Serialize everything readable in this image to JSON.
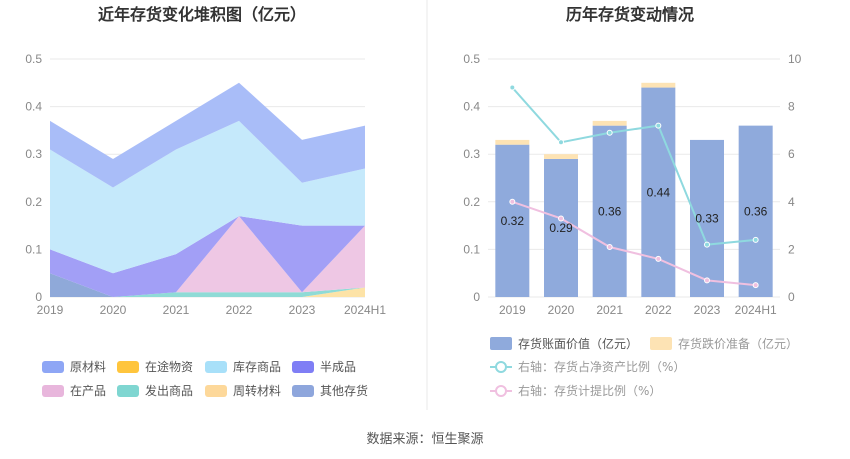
{
  "footer": {
    "source": "数据来源：恒生聚源"
  },
  "chart_data": [
    {
      "type": "area",
      "title": "近年存货变化堆积图（亿元）",
      "categories": [
        "2019",
        "2020",
        "2021",
        "2022",
        "2023",
        "2024H1"
      ],
      "y_ticks": [
        "0",
        "0.1",
        "0.2",
        "0.3",
        "0.4",
        "0.5"
      ],
      "ylim": [
        0,
        0.5
      ],
      "grid": true,
      "legend_position": "bottom",
      "series": [
        {
          "name": "其他存货",
          "color": "#8fa9d9",
          "values": [
            0.05,
            0.0,
            0.0,
            0.0,
            0.0,
            0.0
          ]
        },
        {
          "name": "周转材料",
          "color": "#fde3a7",
          "values": [
            0.0,
            0.0,
            0.0,
            0.0,
            0.0,
            0.02
          ]
        },
        {
          "name": "发出商品",
          "color": "#8fdbd6",
          "values": [
            0.0,
            0.0,
            0.01,
            0.01,
            0.01,
            0.0
          ]
        },
        {
          "name": "在产品",
          "color": "#eec7e4",
          "values": [
            0.0,
            0.0,
            0.0,
            0.16,
            0.0,
            0.13
          ]
        },
        {
          "name": "半成品",
          "color": "#a29ff6",
          "values": [
            0.05,
            0.05,
            0.08,
            0.0,
            0.14,
            0.0
          ]
        },
        {
          "name": "在途物资",
          "color": "#ffc53d",
          "values": [
            0.0,
            0.0,
            0.0,
            0.0,
            0.0,
            0.0
          ]
        },
        {
          "name": "库存商品",
          "color": "#c5e9fb",
          "values": [
            0.21,
            0.18,
            0.22,
            0.2,
            0.09,
            0.12
          ]
        },
        {
          "name": "原材料",
          "color": "#a9bdf8",
          "values": [
            0.06,
            0.06,
            0.06,
            0.08,
            0.09,
            0.09
          ]
        }
      ],
      "legend": [
        {
          "name": "原材料",
          "color": "#8ea6f5"
        },
        {
          "name": "在途物资",
          "color": "#ffc53d"
        },
        {
          "name": "库存商品",
          "color": "#a8e0f9"
        },
        {
          "name": "半成品",
          "color": "#7f7ef5"
        },
        {
          "name": "在产品",
          "color": "#e8b6dc"
        },
        {
          "name": "发出商品",
          "color": "#7fd6d1"
        },
        {
          "name": "周转材料",
          "color": "#fdd89a"
        },
        {
          "name": "其他存货",
          "color": "#8ea6dc"
        }
      ]
    },
    {
      "type": "bar",
      "title": "历年存货变动情况",
      "categories": [
        "2019",
        "2020",
        "2021",
        "2022",
        "2023",
        "2024H1"
      ],
      "y_left_ticks": [
        "0",
        "0.1",
        "0.2",
        "0.3",
        "0.4",
        "0.5"
      ],
      "y_right_ticks": [
        "0",
        "2",
        "4",
        "6",
        "8",
        "10"
      ],
      "ylim_left": [
        0,
        0.5
      ],
      "ylim_right": [
        0,
        10
      ],
      "grid": true,
      "legend_position": "bottom",
      "bar_series": [
        {
          "name": "存货账面价值（亿元）",
          "color": "#8faadc",
          "values": [
            0.32,
            0.29,
            0.36,
            0.44,
            0.33,
            0.36
          ],
          "labels": [
            "0.32",
            "0.29",
            "0.36",
            "0.44",
            "0.33",
            "0.36"
          ]
        },
        {
          "name": "存货跌价准备（亿元）",
          "color": "#fde3b4",
          "values": [
            0.01,
            0.01,
            0.01,
            0.01,
            0.0,
            0.0
          ]
        }
      ],
      "line_series": [
        {
          "name": "右轴：存货占净资产比例（%）",
          "color": "#8fd9df",
          "values": [
            8.8,
            6.5,
            6.9,
            7.2,
            2.2,
            2.4
          ]
        },
        {
          "name": "右轴：存货计提比例（%）",
          "color": "#f0c0e0",
          "values": [
            4.0,
            3.3,
            2.1,
            1.6,
            0.7,
            0.5
          ]
        }
      ]
    }
  ]
}
